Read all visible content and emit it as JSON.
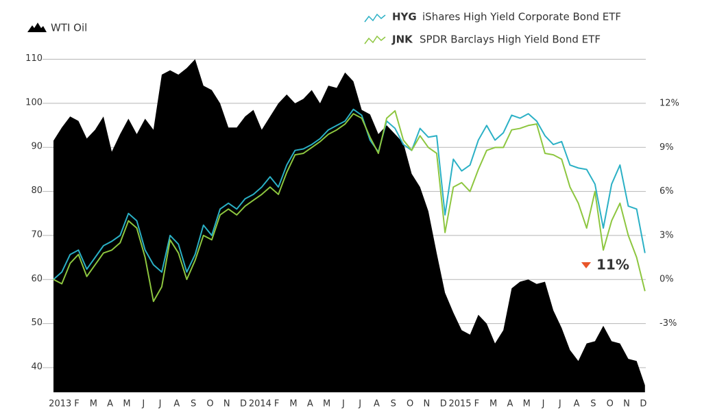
{
  "chart_data": {
    "type": "area-line",
    "x": [
      -0.4,
      0.1,
      0.6,
      1.1,
      1.6,
      2.1,
      2.6,
      3.1,
      3.6,
      4.1,
      4.6,
      5.1,
      5.6,
      6.1,
      6.6,
      7.1,
      7.6,
      8.1,
      8.6,
      9.1,
      9.6,
      10.1,
      10.6,
      11.1,
      11.6,
      12.1,
      12.6,
      13.1,
      13.6,
      14.1,
      14.6,
      15.1,
      15.6,
      16.1,
      16.6,
      17.1,
      17.6,
      18.1,
      18.6,
      19.1,
      19.6,
      20.1,
      20.6,
      21.1,
      21.6,
      22.1,
      22.6,
      23.1,
      23.6,
      24.1,
      24.6,
      25.1,
      25.6,
      26.1,
      26.6,
      27.1,
      27.6,
      28.1,
      28.6,
      29.1,
      29.6,
      30.1,
      30.6,
      31.1,
      31.6,
      32.1,
      32.6,
      33.1,
      33.6,
      34.1,
      34.6,
      35.1
    ],
    "xlim": [
      -0.4,
      35.15
    ],
    "xticks": [
      {
        "value": 0,
        "label": "2013"
      },
      {
        "value": 1,
        "label": "F"
      },
      {
        "value": 2,
        "label": "M"
      },
      {
        "value": 3,
        "label": "A"
      },
      {
        "value": 4,
        "label": "M"
      },
      {
        "value": 5,
        "label": "J"
      },
      {
        "value": 6,
        "label": "J"
      },
      {
        "value": 7,
        "label": "A"
      },
      {
        "value": 8,
        "label": "S"
      },
      {
        "value": 9,
        "label": "O"
      },
      {
        "value": 10,
        "label": "N"
      },
      {
        "value": 11,
        "label": "D"
      },
      {
        "value": 12,
        "label": "2014"
      },
      {
        "value": 13,
        "label": "F"
      },
      {
        "value": 14,
        "label": "M"
      },
      {
        "value": 15,
        "label": "A"
      },
      {
        "value": 16,
        "label": "M"
      },
      {
        "value": 17,
        "label": "J"
      },
      {
        "value": 18,
        "label": "J"
      },
      {
        "value": 19,
        "label": "A"
      },
      {
        "value": 20,
        "label": "S"
      },
      {
        "value": 21,
        "label": "O"
      },
      {
        "value": 22,
        "label": "N"
      },
      {
        "value": 23,
        "label": "D"
      },
      {
        "value": 24,
        "label": "2015"
      },
      {
        "value": 25,
        "label": "F"
      },
      {
        "value": 26,
        "label": "M"
      },
      {
        "value": 27,
        "label": "A"
      },
      {
        "value": 28,
        "label": "M"
      },
      {
        "value": 29,
        "label": "J"
      },
      {
        "value": 30,
        "label": "J"
      },
      {
        "value": 31,
        "label": "A"
      },
      {
        "value": 32,
        "label": "S"
      },
      {
        "value": 33,
        "label": "O"
      },
      {
        "value": 34,
        "label": "N"
      },
      {
        "value": 35,
        "label": "D"
      }
    ],
    "ylim": [
      34.4,
      112.1
    ],
    "yticks": [
      40,
      50,
      60,
      70,
      80,
      90,
      100,
      110
    ],
    "y2lim": [
      -7.7,
      15.65
    ],
    "y2ticks": [
      {
        "value": -3,
        "label": "-3%"
      },
      {
        "value": 0,
        "label": "0%"
      },
      {
        "value": 3,
        "label": "3%"
      },
      {
        "value": 6,
        "label": "6%"
      },
      {
        "value": 9,
        "label": "9%"
      },
      {
        "value": 12,
        "label": "12%"
      }
    ],
    "grid": true,
    "series": [
      {
        "name": "WTI Oil",
        "color": "#000000",
        "kind": "area",
        "values": [
          91.5,
          94.5,
          97,
          96,
          92,
          94,
          97,
          89,
          93,
          96.5,
          93,
          96.5,
          94,
          106.5,
          107.5,
          106.5,
          108,
          110,
          104,
          103,
          100,
          94.5,
          94.5,
          97,
          98.5,
          94,
          97,
          100,
          102,
          100,
          101,
          103,
          100,
          104,
          103.5,
          107,
          105,
          98.5,
          97.5,
          93,
          95,
          93,
          91,
          84,
          81,
          75.5,
          66,
          57,
          52.5,
          48.5,
          47.5,
          52,
          50,
          45.5,
          48.5,
          58,
          59.5,
          60,
          59,
          59.5,
          53,
          49,
          44,
          41.5,
          45.5,
          46,
          49.5,
          46,
          45.5,
          42,
          41.5,
          36
        ]
      },
      {
        "name": "HYG",
        "description": "iShares High Yield Corporate Bond ETF",
        "color": "#2ab0c5",
        "axis": "y2",
        "values": [
          0,
          0.5,
          1.7,
          2.0,
          0.7,
          1.5,
          2.3,
          2.6,
          3.0,
          4.5,
          4.0,
          2.0,
          1.0,
          0.5,
          3.0,
          2.4,
          0.5,
          1.7,
          3.7,
          3.0,
          4.8,
          5.2,
          4.8,
          5.5,
          5.8,
          6.3,
          7.0,
          6.3,
          7.8,
          8.8,
          8.9,
          9.2,
          9.6,
          10.2,
          10.5,
          10.8,
          11.6,
          11.2,
          9.5,
          8.7,
          10.8,
          10.3,
          9.2,
          8.8,
          10.3,
          9.7,
          9.8,
          4.4,
          8.2,
          7.4,
          7.8,
          9.5,
          10.5,
          9.5,
          10.0,
          11.2,
          11.0,
          11.3,
          10.8,
          9.8,
          9.2,
          9.4,
          7.8,
          7.6,
          7.5,
          6.5,
          3.5,
          6.5,
          7.8,
          5.0,
          4.8,
          1.8
        ]
      },
      {
        "name": "JNK",
        "description": "SPDR Barclays High Yield Bond ETF",
        "color": "#8dc63f",
        "axis": "y2",
        "values": [
          0,
          -0.3,
          1.1,
          1.7,
          0.2,
          1.0,
          1.8,
          2.0,
          2.5,
          4.0,
          3.5,
          1.5,
          -1.5,
          -0.5,
          2.7,
          1.8,
          0.0,
          1.3,
          3.0,
          2.7,
          4.4,
          4.8,
          4.4,
          5.0,
          5.4,
          5.8,
          6.3,
          5.8,
          7.3,
          8.5,
          8.6,
          9.0,
          9.4,
          9.9,
          10.2,
          10.6,
          11.3,
          11.0,
          9.7,
          8.6,
          11.0,
          11.5,
          9.5,
          8.8,
          9.8,
          9.0,
          8.6,
          3.2,
          6.3,
          6.6,
          6.0,
          7.5,
          8.8,
          9.0,
          9.0,
          10.2,
          10.3,
          10.5,
          10.6,
          8.6,
          8.5,
          8.2,
          6.3,
          5.2,
          3.5,
          6.0,
          2.0,
          4.0,
          5.2,
          3.0,
          1.5,
          -0.8
        ]
      }
    ],
    "annotation": {
      "text": "11%",
      "color": "#e8552a"
    }
  }
}
